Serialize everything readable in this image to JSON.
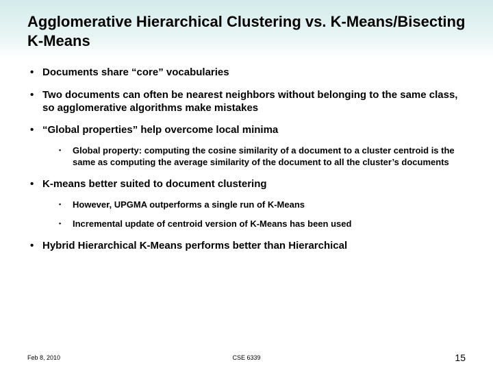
{
  "colors": {
    "header_gradient_top": "#d4ecec",
    "header_gradient_bottom": "#ffffff",
    "text": "#000000",
    "background": "#ffffff"
  },
  "typography": {
    "title_fontsize": 22,
    "bullet_fontsize": 15,
    "sub_bullet_fontsize": 13,
    "footer_fontsize": 9,
    "page_number_fontsize": 14,
    "weight": "bold"
  },
  "title": "Agglomerative Hierarchical Clustering vs. K-Means/Bisecting K-Means",
  "bullets": {
    "b1": "Documents share “core” vocabularies",
    "b2": "Two documents can often be nearest neighbors without belonging to the same class, so agglomerative algorithms make mistakes",
    "b3": "“Global properties” help overcome local minima",
    "b3_sub1": "Global property: computing the cosine similarity of a document to a cluster centroid is the same as computing the average similarity of the document to all the cluster’s documents",
    "b4": "K-means better suited to document clustering",
    "b4_sub1": "However, UPGMA outperforms a single run of K-Means",
    "b4_sub2": "Incremental update of centroid version of K-Means has been used",
    "b5": "Hybrid Hierarchical K-Means performs better than Hierarchical"
  },
  "footer": {
    "date": "Feb 8, 2010",
    "course": "CSE 6339",
    "page": "15"
  }
}
